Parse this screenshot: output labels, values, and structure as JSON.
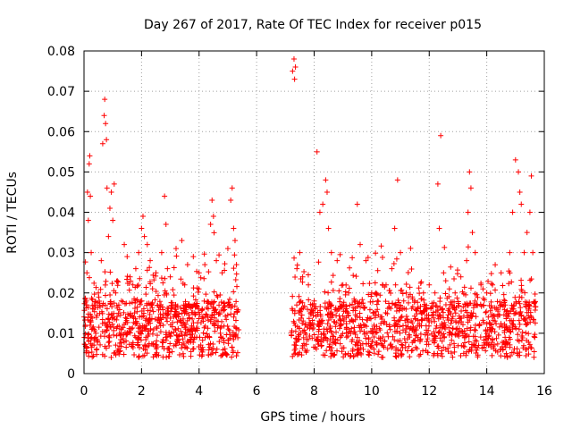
{
  "chart_data": {
    "type": "scatter",
    "title": "Day 267 of 2017, Rate Of TEC Index for receiver p015",
    "xlabel": "GPS time / hours",
    "ylabel": "ROTI / TECUs",
    "xlim": [
      0,
      16
    ],
    "ylim": [
      0,
      0.08
    ],
    "xticks": [
      0,
      2,
      4,
      6,
      8,
      10,
      12,
      14,
      16
    ],
    "yticks": [
      0,
      0.01,
      0.02,
      0.03,
      0.04,
      0.05,
      0.06,
      0.07,
      0.08
    ],
    "xtick_labels": [
      "0",
      "2",
      "4",
      "6",
      "8",
      "10",
      "12",
      "14",
      "16"
    ],
    "ytick_labels": [
      "0",
      "0.01",
      "0.02",
      "0.03",
      "0.04",
      "0.05",
      "0.06",
      "0.07",
      "0.08"
    ],
    "grid": true,
    "marker": "plus",
    "color": "#ff0000",
    "data_gap": [
      5.4,
      7.2
    ],
    "series": [
      {
        "name": "ROTI",
        "points": [
          [
            0.05,
            0.012
          ],
          [
            0.1,
            0.025
          ],
          [
            0.12,
            0.045
          ],
          [
            0.15,
            0.038
          ],
          [
            0.18,
            0.052
          ],
          [
            0.2,
            0.054
          ],
          [
            0.22,
            0.044
          ],
          [
            0.25,
            0.03
          ],
          [
            0.3,
            0.016
          ],
          [
            0.35,
            0.011
          ],
          [
            0.4,
            0.009
          ],
          [
            0.5,
            0.02
          ],
          [
            0.6,
            0.028
          ],
          [
            0.65,
            0.057
          ],
          [
            0.7,
            0.064
          ],
          [
            0.72,
            0.068
          ],
          [
            0.75,
            0.062
          ],
          [
            0.78,
            0.058
          ],
          [
            0.8,
            0.046
          ],
          [
            0.85,
            0.034
          ],
          [
            0.9,
            0.041
          ],
          [
            0.95,
            0.045
          ],
          [
            1.0,
            0.038
          ],
          [
            1.05,
            0.047
          ],
          [
            1.1,
            0.02
          ],
          [
            1.2,
            0.015
          ],
          [
            1.3,
            0.018
          ],
          [
            1.4,
            0.032
          ],
          [
            1.5,
            0.029
          ],
          [
            1.6,
            0.024
          ],
          [
            1.7,
            0.022
          ],
          [
            1.8,
            0.026
          ],
          [
            1.9,
            0.03
          ],
          [
            2.0,
            0.036
          ],
          [
            2.05,
            0.039
          ],
          [
            2.1,
            0.034
          ],
          [
            2.2,
            0.032
          ],
          [
            2.3,
            0.028
          ],
          [
            2.5,
            0.025
          ],
          [
            2.7,
            0.03
          ],
          [
            2.8,
            0.044
          ],
          [
            2.85,
            0.037
          ],
          [
            2.9,
            0.026
          ],
          [
            3.0,
            0.024
          ],
          [
            3.2,
            0.031
          ],
          [
            3.4,
            0.033
          ],
          [
            3.5,
            0.022
          ],
          [
            3.6,
            0.027
          ],
          [
            3.8,
            0.029
          ],
          [
            4.0,
            0.025
          ],
          [
            4.2,
            0.027
          ],
          [
            4.4,
            0.037
          ],
          [
            4.45,
            0.043
          ],
          [
            4.5,
            0.039
          ],
          [
            4.6,
            0.028
          ],
          [
            4.8,
            0.025
          ],
          [
            5.0,
            0.031
          ],
          [
            5.1,
            0.043
          ],
          [
            5.15,
            0.046
          ],
          [
            5.2,
            0.036
          ],
          [
            5.25,
            0.033
          ],
          [
            5.3,
            0.027
          ],
          [
            7.25,
            0.075
          ],
          [
            7.3,
            0.078
          ],
          [
            7.32,
            0.073
          ],
          [
            7.35,
            0.076
          ],
          [
            7.4,
            0.026
          ],
          [
            7.5,
            0.03
          ],
          [
            7.6,
            0.024
          ],
          [
            7.8,
            0.022
          ],
          [
            8.0,
            0.018
          ],
          [
            8.1,
            0.055
          ],
          [
            8.2,
            0.04
          ],
          [
            8.3,
            0.042
          ],
          [
            8.4,
            0.048
          ],
          [
            8.45,
            0.045
          ],
          [
            8.5,
            0.036
          ],
          [
            8.6,
            0.03
          ],
          [
            8.8,
            0.028
          ],
          [
            9.0,
            0.022
          ],
          [
            9.2,
            0.02
          ],
          [
            9.4,
            0.018
          ],
          [
            9.5,
            0.042
          ],
          [
            9.6,
            0.032
          ],
          [
            9.8,
            0.028
          ],
          [
            10.0,
            0.02
          ],
          [
            10.2,
            0.018
          ],
          [
            10.5,
            0.022
          ],
          [
            10.7,
            0.026
          ],
          [
            10.8,
            0.036
          ],
          [
            10.9,
            0.048
          ],
          [
            11.0,
            0.03
          ],
          [
            11.2,
            0.02
          ],
          [
            11.5,
            0.018
          ],
          [
            11.8,
            0.02
          ],
          [
            12.0,
            0.022
          ],
          [
            12.2,
            0.02
          ],
          [
            12.3,
            0.047
          ],
          [
            12.35,
            0.036
          ],
          [
            12.4,
            0.059
          ],
          [
            12.5,
            0.025
          ],
          [
            12.7,
            0.021
          ],
          [
            12.9,
            0.02
          ],
          [
            13.1,
            0.024
          ],
          [
            13.3,
            0.028
          ],
          [
            13.35,
            0.04
          ],
          [
            13.4,
            0.05
          ],
          [
            13.45,
            0.046
          ],
          [
            13.5,
            0.035
          ],
          [
            13.6,
            0.03
          ],
          [
            13.8,
            0.022
          ],
          [
            14.0,
            0.02
          ],
          [
            14.2,
            0.022
          ],
          [
            14.5,
            0.025
          ],
          [
            14.8,
            0.03
          ],
          [
            14.9,
            0.04
          ],
          [
            15.0,
            0.053
          ],
          [
            15.1,
            0.05
          ],
          [
            15.15,
            0.045
          ],
          [
            15.2,
            0.042
          ],
          [
            15.3,
            0.03
          ],
          [
            15.4,
            0.035
          ],
          [
            15.5,
            0.04
          ],
          [
            15.55,
            0.049
          ],
          [
            15.6,
            0.03
          ]
        ]
      }
    ]
  }
}
